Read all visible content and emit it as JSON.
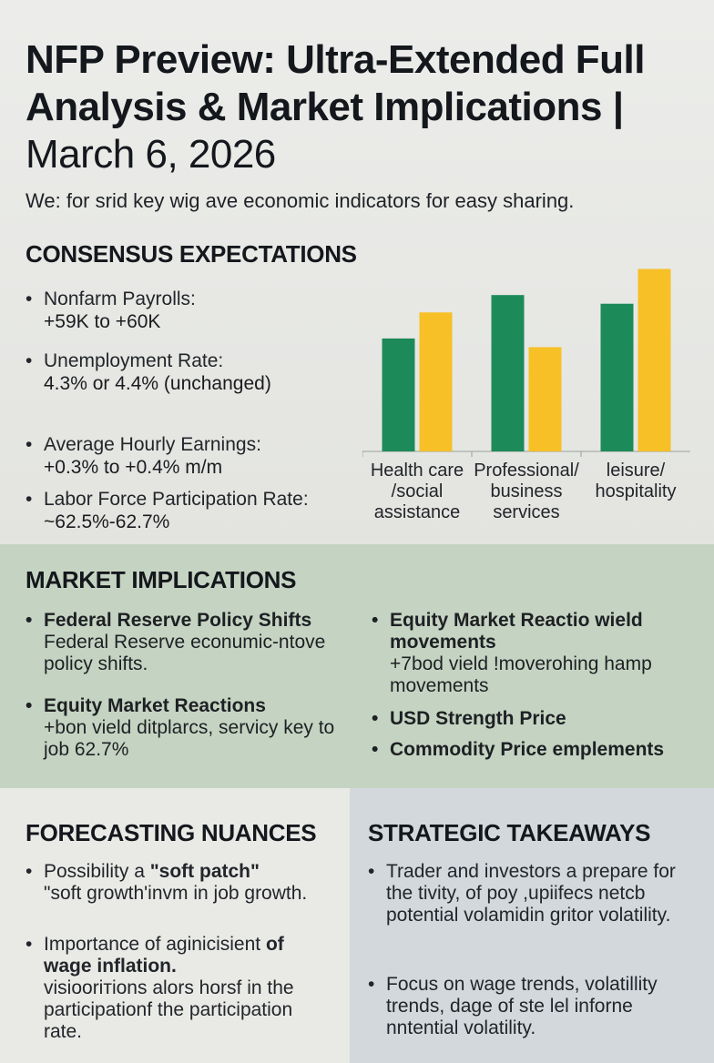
{
  "header": {
    "title_bold": "NFP Preview: Ultra-Extended Full Analysis & Market Implications",
    "title_date": "March 6, 2026",
    "subtitle": "We: for srid key wig ave economic indicators for easy sharing."
  },
  "consensus": {
    "heading": "CONSENSUS EXPECTATIONS",
    "items": [
      {
        "label": "Nonfarm Payrolls:",
        "value": "+59K to +60K"
      },
      {
        "label": "Unemployment Rate:",
        "value": "4.3% or 4.4% (unchanged)"
      },
      {
        "label": "Average Hourly Earnings:",
        "value": "+0.3% to +0.4% m/m"
      },
      {
        "label": "Labor Force Participation Rate:",
        "value": "~62.5%-62.7%"
      }
    ]
  },
  "chart_data": {
    "type": "bar",
    "title": "",
    "xlabel": "",
    "ylabel": "",
    "categories": [
      "Health care /social assistance",
      "Professional/ business services",
      "leisure/ hospitality"
    ],
    "category_lines": [
      [
        "Health care",
        "/social",
        "assistance"
      ],
      [
        "Professional/",
        "business",
        "services"
      ],
      [
        "leisure/",
        "hospitality"
      ]
    ],
    "series": [
      {
        "values": [
          6.5,
          9.0,
          8.5
        ],
        "color": "#1d8a5a"
      },
      {
        "values": [
          8.0,
          6.0,
          10.5
        ],
        "color": "#f6c026"
      }
    ],
    "ylim": [
      0,
      11
    ],
    "grid": false,
    "legend": "none"
  },
  "market": {
    "heading": "MARKET IMPLICATIONS",
    "left": [
      {
        "head": "Federal Reserve Policy Shifts",
        "body": "Federal Reserve econumic-ntove policy shifts."
      },
      {
        "head": "Equity Market Reactions",
        "body": "+bon vield ditplarcs, servicy key to job 62.7%"
      }
    ],
    "right": [
      {
        "head": "Equity Market Reactio wield movements",
        "body": "+7bod vield !moverohing hamp movements"
      },
      {
        "head": "USD Strength Price",
        "body": ""
      },
      {
        "head": "Commodity Price emplements",
        "body": ""
      }
    ]
  },
  "forecasting": {
    "heading": "FORECASTING NUANCES",
    "item1_pre": "Possibility a ",
    "item1_bold": "\"soft patch\"",
    "item1_post": "\"soft growth'invm in job growth.",
    "item2_pre": "Importance of aginicisient ",
    "item2_bold": "of wage inflation.",
    "item2_post": "visioorітions alors horsf in the participationf the participation rate."
  },
  "strategic": {
    "heading": "STRATEGIC TAKEAWAYS",
    "items": [
      "Trader and investors a prepare for the tivity, of poy ,upiifecs netcb potential volamidin gritor volatility.",
      "Focus on wage trends, volatillity trends, dage of ste lel inforne nntential volatility."
    ]
  }
}
